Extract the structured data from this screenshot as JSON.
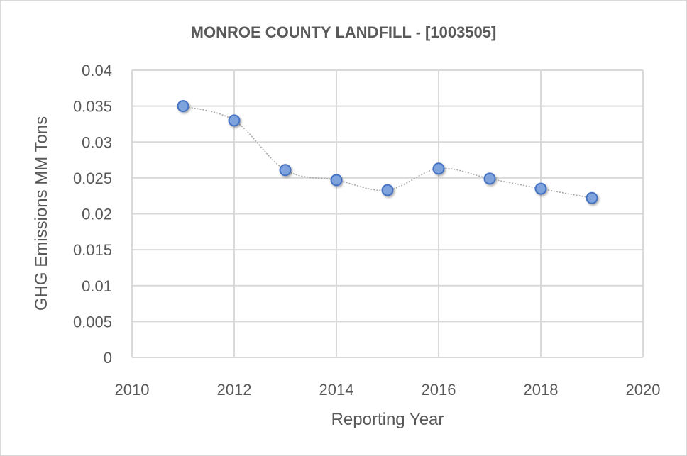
{
  "chart_data": {
    "type": "scatter",
    "title": "MONROE COUNTY LANDFILL - [1003505]",
    "xlabel": "Reporting Year",
    "ylabel": "GHG Emissions MM Tons",
    "xlim": [
      2010,
      2020
    ],
    "ylim": [
      0,
      0.04
    ],
    "xticks": [
      "2010",
      "2012",
      "2014",
      "2016",
      "2018",
      "2020"
    ],
    "yticks": [
      "0",
      "0.005",
      "0.01",
      "0.015",
      "0.02",
      "0.025",
      "0.03",
      "0.035",
      "0.04"
    ],
    "grid": true,
    "legend": "none",
    "series": [
      {
        "name": "GHG Emissions",
        "x": [
          2011,
          2012,
          2013,
          2014,
          2015,
          2016,
          2017,
          2018,
          2019
        ],
        "y": [
          0.035,
          0.033,
          0.0261,
          0.0247,
          0.0233,
          0.0263,
          0.0249,
          0.0235,
          0.0222
        ],
        "color": "#7fa3dc",
        "edge_color": "#4472c4",
        "line_color": "#a6a6a6"
      }
    ]
  }
}
